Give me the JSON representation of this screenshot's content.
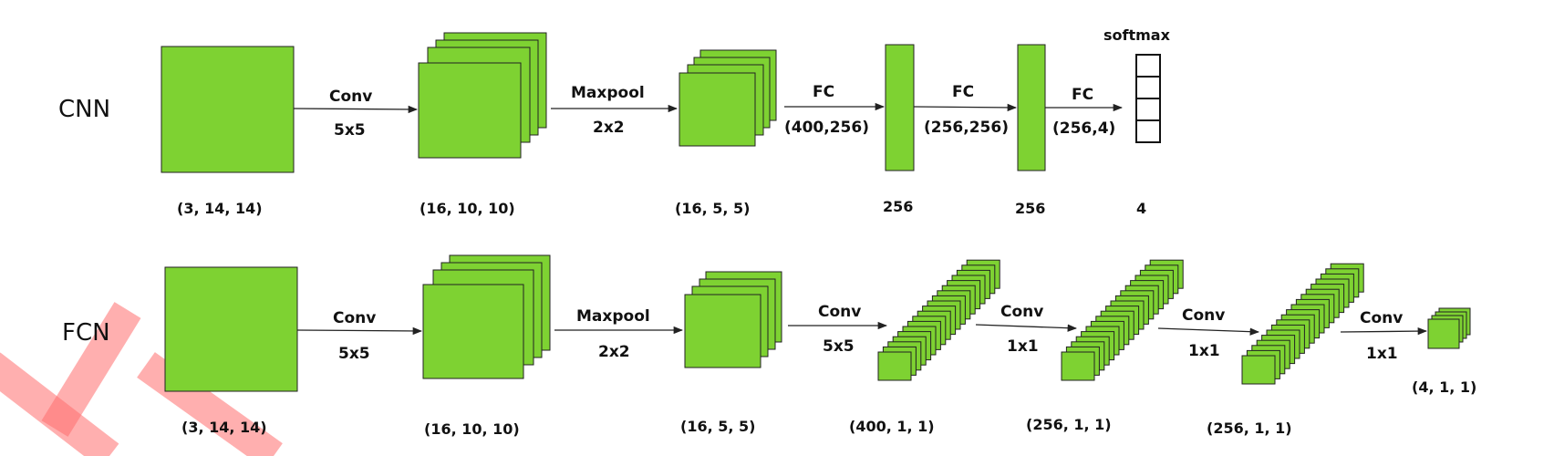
{
  "rows": {
    "cnn": {
      "label": "CNN",
      "ops": [
        {
          "name": "Conv",
          "param": "5x5"
        },
        {
          "name": "Maxpool",
          "param": "2x2"
        },
        {
          "name": "FC",
          "param": "(400,256)"
        },
        {
          "name": "FC",
          "param": "(256,256)"
        },
        {
          "name": "FC",
          "param": "(256,4)"
        }
      ],
      "shapes": [
        "(3, 14, 14)",
        "(16, 10, 10)",
        "(16, 5, 5)",
        "256",
        "256",
        "4"
      ],
      "softmax_label": "softmax"
    },
    "fcn": {
      "label": "FCN",
      "ops": [
        {
          "name": "Conv",
          "param": "5x5"
        },
        {
          "name": "Maxpool",
          "param": "2x2"
        },
        {
          "name": "Conv",
          "param": "5x5"
        },
        {
          "name": "Conv",
          "param": "1x1"
        },
        {
          "name": "Conv",
          "param": "1x1"
        },
        {
          "name": "Conv",
          "param": "1x1"
        }
      ],
      "shapes": [
        "(3, 14, 14)",
        "(16, 10, 10)",
        "(16, 5, 5)",
        "(400, 1, 1)",
        "(256, 1, 1)",
        "(256, 1, 1)",
        "(4, 1, 1)"
      ]
    }
  },
  "colors": {
    "block_fill": "#7ed232",
    "outline": "#222222",
    "watermark": "#ff6d6d"
  }
}
